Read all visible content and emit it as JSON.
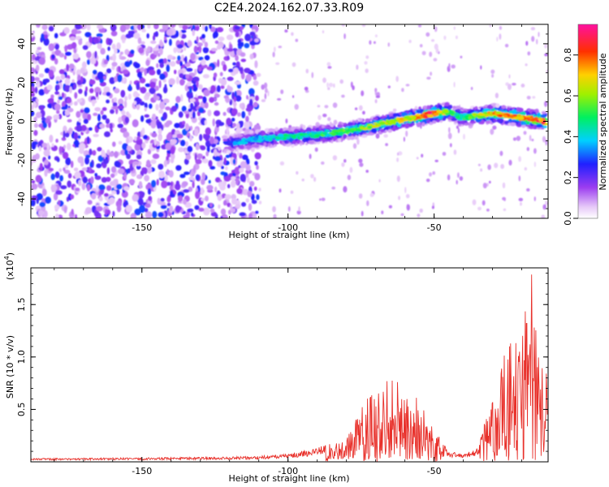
{
  "title": "C2E4.2024.162.07.33.R09",
  "colors": {
    "snr_line": "#e8302a",
    "axis": "#000000",
    "background": "#ffffff"
  },
  "chart_data": [
    {
      "type": "heatmap",
      "title": "C2E4.2024.162.07.33.R09",
      "xlabel": "Height of straight line (km)",
      "ylabel": "Frequency (Hz)",
      "xlim": [
        -188,
        -11
      ],
      "ylim": [
        -50,
        50
      ],
      "x_ticks": [
        -150,
        -100,
        -50
      ],
      "x_tick_labels": [
        "-150",
        "-100",
        "-50"
      ],
      "y_ticks": [
        -40,
        -20,
        0,
        20,
        40
      ],
      "y_tick_labels": [
        "-40",
        "-20",
        "0",
        "20",
        "40"
      ],
      "colorbar": {
        "label": "Normalized spectral amplitude",
        "range": [
          0,
          0.95
        ],
        "ticks": [
          0.0,
          0.2,
          0.4,
          0.6,
          0.8
        ],
        "tick_labels": [
          "0.0",
          "0.2",
          "0.4",
          "0.6",
          "0.8"
        ]
      },
      "noise_region": {
        "x_range": [
          -188,
          -110
        ],
        "amplitude_range": [
          0.05,
          0.3
        ]
      },
      "signal_ridge": {
        "description_points_x": [
          -122,
          -110,
          -100,
          -90,
          -80,
          -70,
          -60,
          -50,
          -45,
          -40,
          -30,
          -20,
          -12
        ],
        "frequency_hz": [
          -12,
          -9,
          -8,
          -7,
          -5,
          -2,
          1,
          4,
          5,
          2,
          4,
          2,
          0
        ],
        "peak_amplitude": [
          0.35,
          0.45,
          0.5,
          0.55,
          0.6,
          0.7,
          0.75,
          0.95,
          0.6,
          0.55,
          0.8,
          0.85,
          0.95
        ]
      }
    },
    {
      "type": "line",
      "xlabel": "Height of straight line (km)",
      "ylabel": "SNR (10 * v/v)",
      "y_multiplier_label": "(x10",
      "y_multiplier_exponent": "4",
      "y_multiplier_close": ")",
      "xlim": [
        -188,
        -11
      ],
      "ylim": [
        0,
        18500
      ],
      "x_ticks": [
        -150,
        -100,
        -50
      ],
      "x_tick_labels": [
        "-150",
        "-100",
        "-50"
      ],
      "y_ticks": [
        5000,
        10000,
        15000
      ],
      "y_tick_labels": [
        "0.5",
        "1.0",
        "1.5"
      ],
      "series": [
        {
          "envelope_x": [
            -188,
            -130,
            -110,
            -100,
            -90,
            -80,
            -75,
            -70,
            -65,
            -60,
            -55,
            -50,
            -45,
            -40,
            -35,
            -30,
            -25,
            -20,
            -17,
            -15,
            -13,
            -11
          ],
          "envelope_y": [
            300,
            400,
            500,
            700,
            1200,
            2500,
            5000,
            7500,
            8000,
            7500,
            6000,
            3000,
            900,
            700,
            1200,
            6500,
            11000,
            12000,
            18500,
            14000,
            9500,
            10500
          ]
        }
      ]
    }
  ]
}
